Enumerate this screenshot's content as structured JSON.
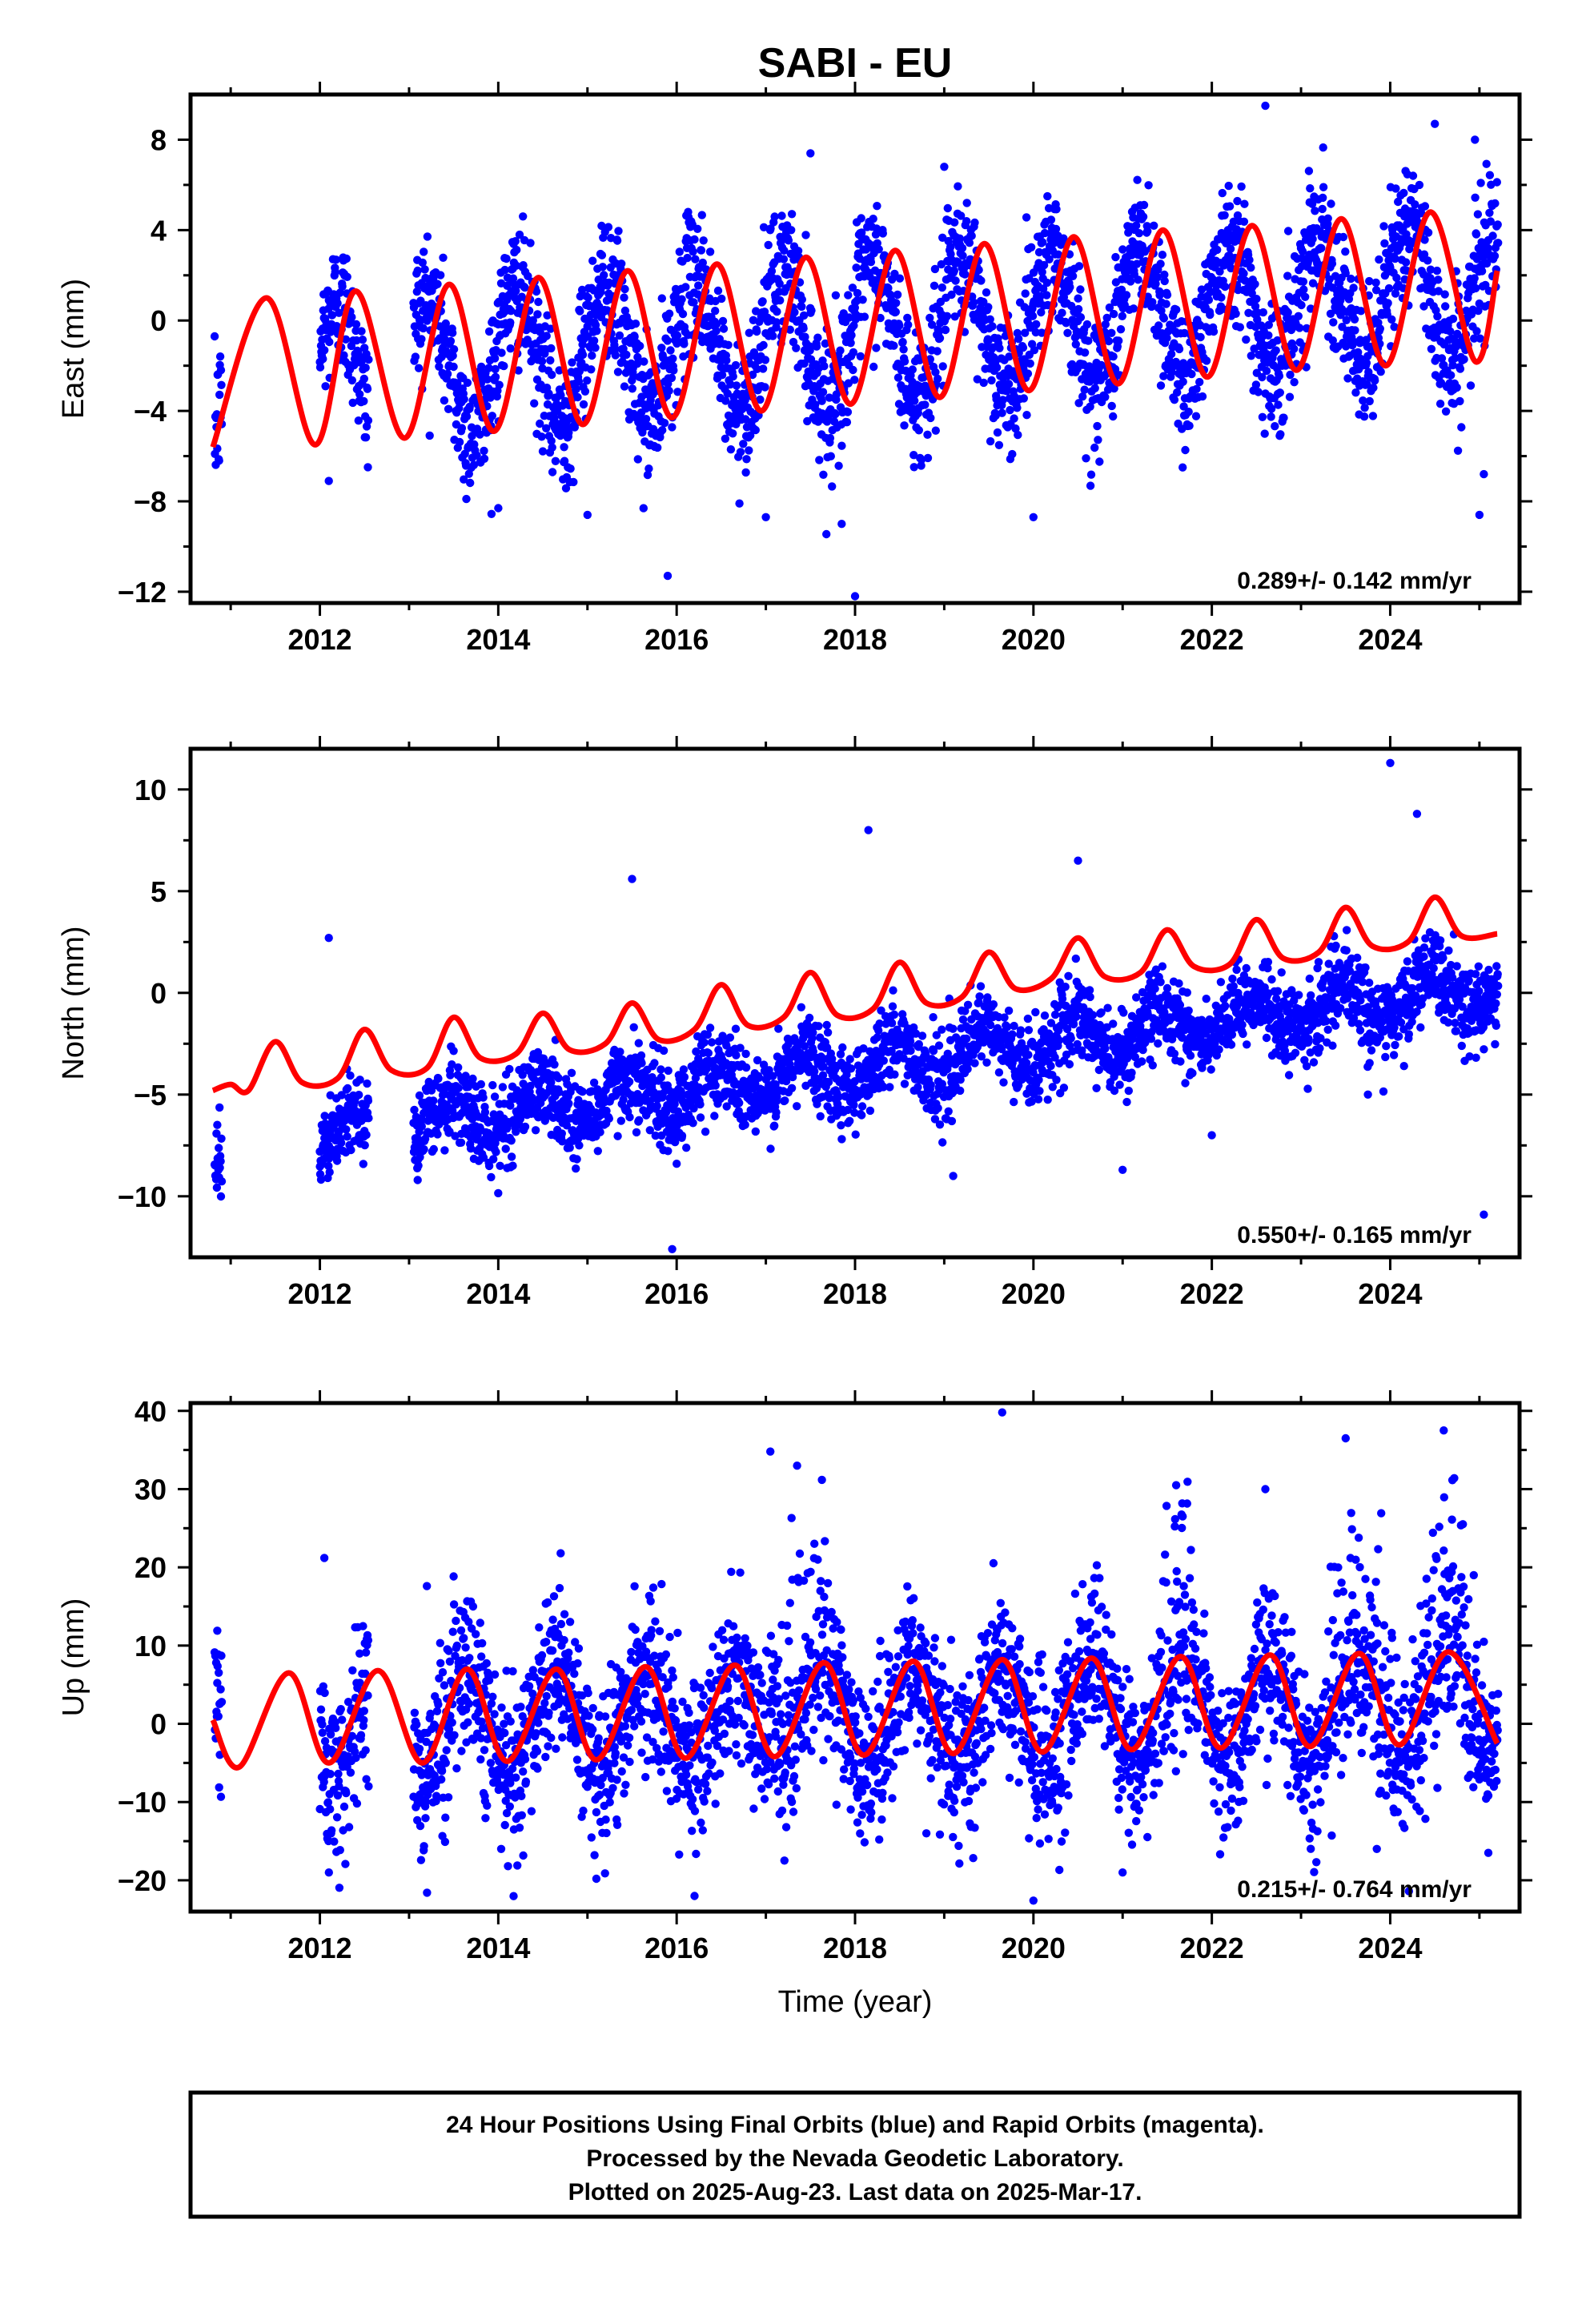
{
  "title": "SABI - EU",
  "xlabel": "Time (year)",
  "footer": {
    "line1": "24 Hour Positions Using Final Orbits (blue) and Rapid Orbits (magenta).",
    "line2": "Processed by the Nevada Geodetic Laboratory.",
    "line3": "Plotted on 2025-Aug-23. Last data on 2025-Mar-17."
  },
  "colors": {
    "points": "#0000ff",
    "fit": "#ff0000",
    "frame": "#000000"
  },
  "chart_data": [
    {
      "type": "scatter",
      "component": "east",
      "ylabel": "East (mm)",
      "rate_label": "0.289+/- 0.142 mm/yr",
      "xlim": [
        2010.55,
        2025.45
      ],
      "ylim": [
        -12.5,
        10
      ],
      "x_ticks": [
        2012,
        2014,
        2016,
        2018,
        2020,
        2022,
        2024
      ],
      "y_ticks": [
        -12,
        -8,
        -4,
        0,
        4,
        8
      ],
      "data_range": [
        2010.82,
        2025.21
      ],
      "data_gap": [
        2012.55,
        2013.05
      ],
      "series": [
        {
          "role": "fit",
          "trend_mm_per_yr": 0.289,
          "points": [
            [
              2010.8,
              -5.6
            ],
            [
              2011.4,
              1.0
            ],
            [
              2011.95,
              -5.5
            ],
            [
              2012.4,
              1.3
            ],
            [
              2012.95,
              -5.2
            ],
            [
              2013.45,
              1.6
            ],
            [
              2013.95,
              -4.9
            ],
            [
              2014.45,
              1.9
            ],
            [
              2014.95,
              -4.6
            ],
            [
              2015.45,
              2.2
            ],
            [
              2015.95,
              -4.3
            ],
            [
              2016.45,
              2.5
            ],
            [
              2016.95,
              -4.0
            ],
            [
              2017.45,
              2.8
            ],
            [
              2017.95,
              -3.7
            ],
            [
              2018.45,
              3.1
            ],
            [
              2018.95,
              -3.4
            ],
            [
              2019.45,
              3.4
            ],
            [
              2019.95,
              -3.1
            ],
            [
              2020.45,
              3.7
            ],
            [
              2020.95,
              -2.8
            ],
            [
              2021.45,
              4.0
            ],
            [
              2021.95,
              -2.5
            ],
            [
              2022.45,
              4.2
            ],
            [
              2022.95,
              -2.2
            ],
            [
              2023.45,
              4.5
            ],
            [
              2023.95,
              -2.0
            ],
            [
              2024.45,
              4.8
            ],
            [
              2024.95,
              -1.8
            ],
            [
              2025.2,
              2.2
            ]
          ]
        }
      ],
      "scatter": {
        "amp": 3.0,
        "slope": 0.289,
        "offset": -0.6,
        "phase": 0.2,
        "noise": 1.5
      },
      "outliers": [
        [
          2015.9,
          -11.3
        ],
        [
          2018.0,
          -12.2
        ],
        [
          2017.85,
          -9.0
        ],
        [
          2014.0,
          -8.3
        ],
        [
          2015.0,
          -8.6
        ],
        [
          2017.0,
          -8.7
        ],
        [
          2020.0,
          -8.7
        ],
        [
          2025.0,
          -8.6
        ],
        [
          2025.05,
          -6.8
        ],
        [
          2022.6,
          9.5
        ],
        [
          2024.5,
          8.7
        ],
        [
          2017.5,
          7.4
        ],
        [
          2019.0,
          6.8
        ],
        [
          2012.1,
          -7.1
        ],
        [
          2024.95,
          8.0
        ]
      ]
    },
    {
      "type": "scatter",
      "component": "north",
      "ylabel": "North (mm)",
      "rate_label": "0.550+/- 0.165 mm/yr",
      "xlim": [
        2010.55,
        2025.45
      ],
      "ylim": [
        -13,
        12
      ],
      "x_ticks": [
        2012,
        2014,
        2016,
        2018,
        2020,
        2022,
        2024
      ],
      "y_ticks": [
        -10,
        -5,
        0,
        5,
        10
      ],
      "data_range": [
        2010.82,
        2025.21
      ],
      "data_gap": [
        2012.55,
        2013.05
      ],
      "series": [
        {
          "role": "fit",
          "trend_mm_per_yr": 0.55,
          "points": [
            [
              2010.8,
              -4.8
            ],
            [
              2011.0,
              -4.5
            ],
            [
              2011.2,
              -4.8
            ],
            [
              2011.5,
              -2.4
            ],
            [
              2011.8,
              -4.4
            ],
            [
              2012.2,
              -4.2
            ],
            [
              2012.5,
              -1.8
            ],
            [
              2012.8,
              -3.8
            ],
            [
              2013.2,
              -3.7
            ],
            [
              2013.5,
              -1.2
            ],
            [
              2013.8,
              -3.2
            ],
            [
              2014.2,
              -3.0
            ],
            [
              2014.5,
              -1.0
            ],
            [
              2014.8,
              -2.8
            ],
            [
              2015.2,
              -2.5
            ],
            [
              2015.5,
              -0.5
            ],
            [
              2015.8,
              -2.3
            ],
            [
              2016.2,
              -1.8
            ],
            [
              2016.5,
              0.4
            ],
            [
              2016.8,
              -1.6
            ],
            [
              2017.2,
              -1.2
            ],
            [
              2017.5,
              1.0
            ],
            [
              2017.8,
              -1.1
            ],
            [
              2018.2,
              -0.8
            ],
            [
              2018.5,
              1.5
            ],
            [
              2018.8,
              -0.5
            ],
            [
              2019.2,
              -0.2
            ],
            [
              2019.5,
              2.0
            ],
            [
              2019.8,
              0.2
            ],
            [
              2020.2,
              0.7
            ],
            [
              2020.5,
              2.7
            ],
            [
              2020.8,
              0.8
            ],
            [
              2021.2,
              1.0
            ],
            [
              2021.5,
              3.1
            ],
            [
              2021.8,
              1.3
            ],
            [
              2022.2,
              1.4
            ],
            [
              2022.5,
              3.6
            ],
            [
              2022.8,
              1.7
            ],
            [
              2023.2,
              2.0
            ],
            [
              2023.5,
              4.2
            ],
            [
              2023.8,
              2.3
            ],
            [
              2024.2,
              2.5
            ],
            [
              2024.5,
              4.7
            ],
            [
              2024.8,
              2.8
            ],
            [
              2025.2,
              2.9
            ]
          ]
        }
      ],
      "scatter": {
        "amp": 1.0,
        "slope": 0.55,
        "offset": -3.7,
        "phase": 0.45,
        "noise": 1.0
      },
      "outliers": [
        [
          2015.95,
          -12.6
        ],
        [
          2016.0,
          -8.4
        ],
        [
          2019.1,
          -9.0
        ],
        [
          2025.05,
          -10.9
        ],
        [
          2024.0,
          11.3
        ],
        [
          2018.15,
          8.0
        ],
        [
          2012.0,
          -7.8
        ],
        [
          2013.1,
          -8.2
        ],
        [
          2021.0,
          -8.7
        ],
        [
          2023.75,
          -5.0
        ],
        [
          2022.0,
          -7.0
        ],
        [
          2015.5,
          5.6
        ],
        [
          2020.5,
          6.5
        ],
        [
          2024.3,
          8.8
        ],
        [
          2012.1,
          2.7
        ]
      ]
    },
    {
      "type": "scatter",
      "component": "up",
      "ylabel": "Up (mm)",
      "rate_label": "0.215+/- 0.764 mm/yr",
      "xlim": [
        2010.55,
        2025.45
      ],
      "ylim": [
        -24,
        41
      ],
      "x_ticks": [
        2012,
        2014,
        2016,
        2018,
        2020,
        2022,
        2024
      ],
      "y_ticks": [
        -20,
        -10,
        0,
        10,
        20,
        30,
        40
      ],
      "data_range": [
        2010.82,
        2025.21
      ],
      "data_gap": [
        2012.55,
        2013.05
      ],
      "series": [
        {
          "role": "fit",
          "trend_mm_per_yr": 0.215,
          "points": [
            [
              2010.8,
              0.5
            ],
            [
              2011.1,
              -5.5
            ],
            [
              2011.65,
              6.5
            ],
            [
              2012.1,
              -5.0
            ],
            [
              2012.65,
              6.8
            ],
            [
              2013.15,
              -5.0
            ],
            [
              2013.65,
              7.0
            ],
            [
              2014.1,
              -4.8
            ],
            [
              2014.65,
              7.0
            ],
            [
              2015.1,
              -4.6
            ],
            [
              2015.65,
              7.3
            ],
            [
              2016.1,
              -4.4
            ],
            [
              2016.65,
              7.5
            ],
            [
              2017.1,
              -4.2
            ],
            [
              2017.65,
              7.8
            ],
            [
              2018.1,
              -4.0
            ],
            [
              2018.65,
              8.0
            ],
            [
              2019.1,
              -3.8
            ],
            [
              2019.65,
              8.2
            ],
            [
              2020.1,
              -3.6
            ],
            [
              2020.65,
              8.4
            ],
            [
              2021.1,
              -3.3
            ],
            [
              2021.65,
              8.6
            ],
            [
              2022.1,
              -3.1
            ],
            [
              2022.65,
              8.8
            ],
            [
              2023.1,
              -2.9
            ],
            [
              2023.65,
              9.0
            ],
            [
              2024.1,
              -2.7
            ],
            [
              2024.65,
              9.2
            ],
            [
              2025.2,
              -2.5
            ]
          ]
        }
      ],
      "scatter": {
        "amp": 6.5,
        "slope": 0.215,
        "offset": 1.0,
        "phase": 0.65,
        "noise": 5.0
      },
      "outliers": [
        [
          2019.65,
          39.8
        ],
        [
          2024.6,
          37.5
        ],
        [
          2023.5,
          36.5
        ],
        [
          2017.05,
          34.8
        ],
        [
          2017.35,
          33.0
        ],
        [
          2021.6,
          30.5
        ],
        [
          2022.6,
          30.0
        ],
        [
          2020.0,
          -22.6
        ],
        [
          2016.2,
          -22.0
        ],
        [
          2015.1,
          -19.8
        ],
        [
          2014.7,
          21.8
        ],
        [
          2012.05,
          21.2
        ],
        [
          2013.2,
          17.6
        ],
        [
          2021.0,
          -19.0
        ],
        [
          2025.1,
          -16.5
        ],
        [
          2010.85,
          11.9
        ],
        [
          2018.8,
          -14.0
        ],
        [
          2023.85,
          -16.0
        ]
      ]
    }
  ]
}
